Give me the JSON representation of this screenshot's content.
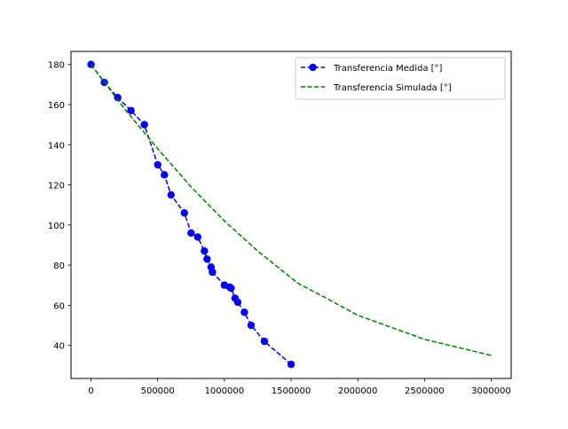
{
  "chart_data": {
    "type": "line",
    "title": "",
    "xlabel": "",
    "ylabel": "",
    "xlim": [
      -150000,
      3150000
    ],
    "ylim": [
      23.5,
      186.5
    ],
    "x_ticks": [
      0,
      500000,
      1000000,
      1500000,
      2000000,
      2500000,
      3000000
    ],
    "x_tick_labels": [
      "0",
      "500000",
      "1000000",
      "1500000",
      "2000000",
      "2500000",
      "3000000"
    ],
    "y_ticks": [
      40,
      60,
      80,
      100,
      120,
      140,
      160,
      180
    ],
    "y_tick_labels": [
      "40",
      "60",
      "80",
      "100",
      "120",
      "140",
      "160",
      "180"
    ],
    "grid": false,
    "legend_position": "top-right",
    "series": [
      {
        "name": "Transferencia Medida [°]",
        "color": "#0000ff",
        "line_style": "dashed",
        "marker": "circle",
        "points": [
          [
            0,
            180
          ],
          [
            100000,
            171
          ],
          [
            200000,
            163.5
          ],
          [
            300000,
            157
          ],
          [
            400000,
            150
          ],
          [
            500000,
            130
          ],
          [
            550000,
            125
          ],
          [
            600000,
            115
          ],
          [
            700000,
            106
          ],
          [
            750000,
            96
          ],
          [
            800000,
            94
          ],
          [
            850000,
            87
          ],
          [
            870000,
            83
          ],
          [
            900000,
            79
          ],
          [
            910000,
            76.5
          ],
          [
            1000000,
            70
          ],
          [
            1040000,
            69
          ],
          [
            1050000,
            68.5
          ],
          [
            1080000,
            63.5
          ],
          [
            1100000,
            61.5
          ],
          [
            1150000,
            56.5
          ],
          [
            1200000,
            50
          ],
          [
            1300000,
            42
          ],
          [
            1500000,
            30.5
          ]
        ]
      },
      {
        "name": "Transferencia Simulada [°]",
        "color": "#008000",
        "line_style": "dashed",
        "marker": "none",
        "points": [
          [
            0,
            180
          ],
          [
            250000,
            158
          ],
          [
            500000,
            138
          ],
          [
            750000,
            119
          ],
          [
            1000000,
            102
          ],
          [
            1250000,
            87
          ],
          [
            1550000,
            71
          ],
          [
            1750000,
            64
          ],
          [
            2000000,
            55
          ],
          [
            2250000,
            49
          ],
          [
            2500000,
            43
          ],
          [
            2750000,
            39
          ],
          [
            3000000,
            35
          ]
        ]
      }
    ]
  }
}
